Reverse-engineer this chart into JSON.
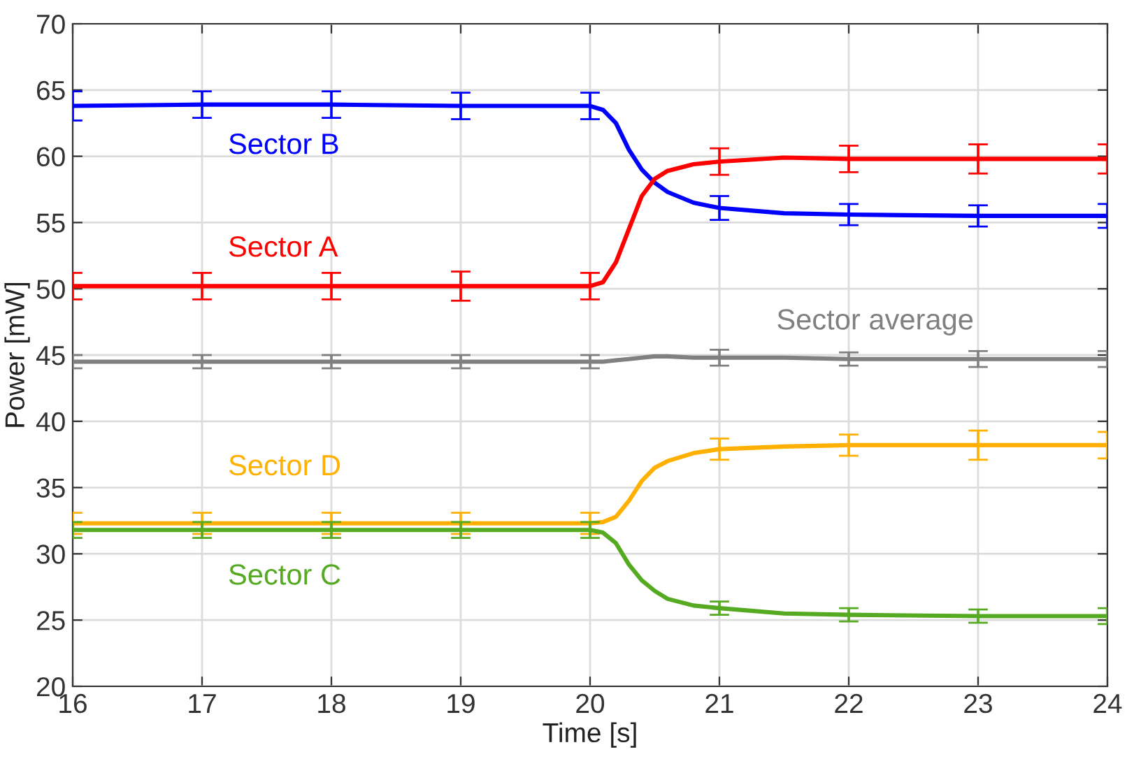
{
  "chart_data": {
    "type": "line",
    "xlabel": "Time [s]",
    "ylabel": "Power [mW]",
    "x": [
      16,
      17,
      18,
      19,
      20,
      20.1,
      20.2,
      20.3,
      20.4,
      20.5,
      20.6,
      20.8,
      21,
      21.5,
      22,
      23,
      24
    ],
    "xlim": [
      16,
      24
    ],
    "xticks": [
      16,
      17,
      18,
      19,
      20,
      21,
      22,
      23,
      24
    ],
    "ylim": [
      20,
      70
    ],
    "yticks": [
      20,
      25,
      30,
      35,
      40,
      45,
      50,
      55,
      60,
      65,
      70
    ],
    "grid": true,
    "legend": false,
    "marker": "none",
    "line_style": "solid",
    "series": [
      {
        "name": "Sector B",
        "color": "#0000ff",
        "values": [
          63.8,
          63.9,
          63.9,
          63.8,
          63.8,
          63.5,
          62.5,
          60.5,
          59,
          58,
          57.3,
          56.5,
          56.1,
          55.7,
          55.6,
          55.5,
          55.5
        ],
        "errors": [
          1.1,
          1,
          1,
          1,
          1,
          null,
          null,
          null,
          null,
          null,
          null,
          null,
          0.9,
          null,
          0.8,
          0.8,
          0.9
        ]
      },
      {
        "name": "Sector A",
        "color": "#ff0000",
        "values": [
          50.2,
          50.2,
          50.2,
          50.2,
          50.2,
          50.5,
          52,
          54.5,
          57,
          58.3,
          58.9,
          59.4,
          59.6,
          59.9,
          59.8,
          59.8,
          59.8
        ],
        "errors": [
          1,
          1,
          1,
          1.1,
          1,
          null,
          null,
          null,
          null,
          null,
          null,
          null,
          1,
          null,
          1,
          1.1,
          1.1
        ]
      },
      {
        "name": "Sector average",
        "color": "#808080",
        "values": [
          44.5,
          44.5,
          44.5,
          44.5,
          44.5,
          44.5,
          44.6,
          44.7,
          44.8,
          44.9,
          44.9,
          44.8,
          44.8,
          44.8,
          44.7,
          44.7,
          44.7
        ],
        "errors": [
          0.5,
          0.5,
          0.5,
          0.5,
          0.5,
          null,
          null,
          null,
          null,
          null,
          null,
          null,
          0.6,
          null,
          0.5,
          0.6,
          0.6
        ]
      },
      {
        "name": "Sector D",
        "color": "#ffb000",
        "values": [
          32.3,
          32.3,
          32.3,
          32.3,
          32.3,
          32.4,
          32.8,
          34,
          35.5,
          36.5,
          37,
          37.6,
          37.9,
          38.1,
          38.2,
          38.2,
          38.2
        ],
        "errors": [
          0.8,
          0.8,
          0.8,
          0.8,
          0.8,
          null,
          null,
          null,
          null,
          null,
          null,
          null,
          0.8,
          null,
          0.8,
          1.1,
          1
        ]
      },
      {
        "name": "Sector C",
        "color": "#55aa22",
        "values": [
          31.8,
          31.8,
          31.8,
          31.8,
          31.8,
          31.6,
          30.8,
          29.2,
          28,
          27.2,
          26.6,
          26.1,
          25.9,
          25.5,
          25.4,
          25.3,
          25.3
        ],
        "errors": [
          0.6,
          0.6,
          0.6,
          0.6,
          0.6,
          null,
          null,
          null,
          null,
          null,
          null,
          null,
          0.5,
          null,
          0.5,
          0.5,
          0.6
        ]
      }
    ]
  }
}
